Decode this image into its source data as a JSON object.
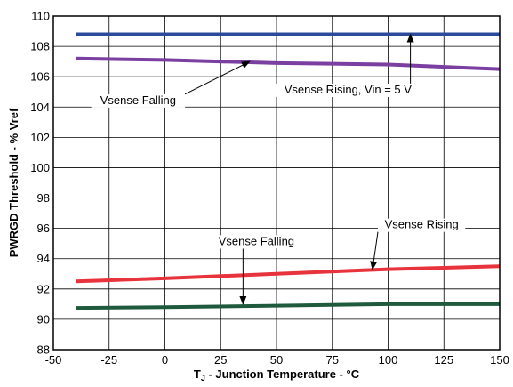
{
  "chart_data": {
    "type": "line",
    "xlabel": {
      "main": "T",
      "sub": "J",
      "rest": " - Junction Temperature - °C"
    },
    "ylabel": "PWRGD Threshold - % Vref",
    "xlim": [
      -50,
      150
    ],
    "ylim": [
      88,
      110
    ],
    "xticks": [
      "-50",
      "-25",
      "0",
      "25",
      "50",
      "75",
      "100",
      "125",
      "150"
    ],
    "yticks": [
      "88",
      "90",
      "92",
      "94",
      "96",
      "98",
      "100",
      "102",
      "104",
      "106",
      "108",
      "110"
    ],
    "grid": true,
    "series": [
      {
        "color": "#2b4a9b",
        "x": [
          -40,
          150
        ],
        "y": [
          108.8,
          108.8
        ]
      },
      {
        "color": "#7a3fa0",
        "x": [
          -40,
          0,
          50,
          100,
          150
        ],
        "y": [
          107.2,
          107.1,
          106.9,
          106.8,
          106.5
        ]
      },
      {
        "color": "#e8323c",
        "x": [
          -40,
          0,
          50,
          100,
          150
        ],
        "y": [
          92.5,
          92.7,
          93.0,
          93.3,
          93.5
        ]
      },
      {
        "color": "#1f5a3c",
        "x": [
          -40,
          0,
          50,
          100,
          150
        ],
        "y": [
          90.75,
          90.8,
          90.9,
          91.0,
          91.0
        ]
      }
    ],
    "annotations": [
      {
        "text": "Vsense Falling",
        "x": -12,
        "y": 104.2,
        "arrow_to": [
          38,
          107.0
        ]
      },
      {
        "text": "Vsense Rising, Vin = 5 V",
        "x": 82,
        "y": 104.9,
        "arrow_to": [
          110,
          108.8
        ]
      },
      {
        "text": "Vsense Falling",
        "x": 41,
        "y": 94.9,
        "arrow_to": [
          35,
          91.0
        ]
      },
      {
        "text": "Vsense Rising",
        "x": 115,
        "y": 96.0,
        "arrow_to": [
          93,
          93.3
        ]
      }
    ]
  }
}
